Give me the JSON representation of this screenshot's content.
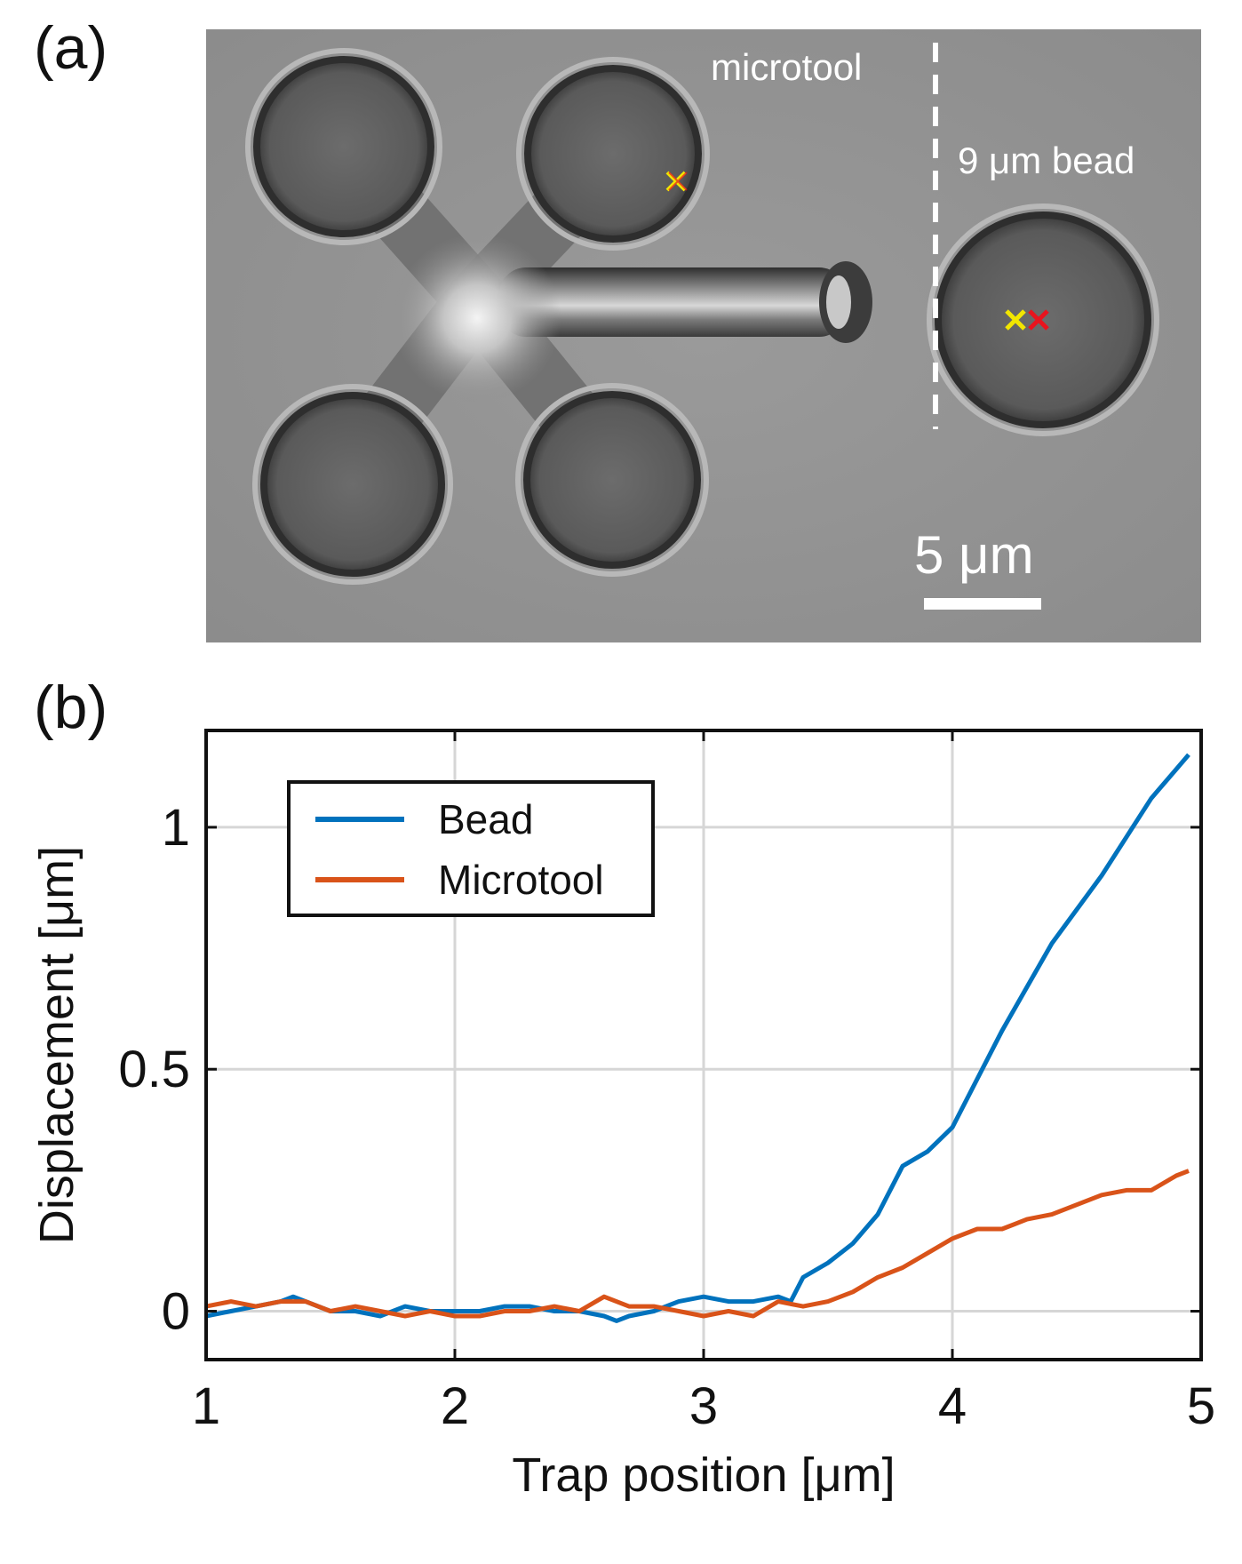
{
  "panel_a": {
    "label": "(a)",
    "annotations": {
      "microtool": "microtool",
      "bead": "9 μm bead",
      "scale_bar": "5 μm"
    },
    "marker_colors": {
      "yellow": "#f2e600",
      "red": "#e8141e"
    }
  },
  "panel_b": {
    "label": "(b)"
  },
  "chart_data": {
    "type": "line",
    "title": "",
    "xlabel": "Trap position [μm]",
    "ylabel": "Displacement [μm]",
    "xlim": [
      1,
      5
    ],
    "ylim": [
      -0.1,
      1.2
    ],
    "xticks": [
      1,
      2,
      3,
      4,
      5
    ],
    "yticks": [
      0,
      0.5,
      1
    ],
    "ytick_labels": [
      "0",
      "0.5",
      "1"
    ],
    "grid": true,
    "legend_position": "top-left",
    "series": [
      {
        "name": "Bead",
        "color": "#0072bd",
        "x": [
          1.0,
          1.1,
          1.2,
          1.3,
          1.35,
          1.4,
          1.5,
          1.6,
          1.7,
          1.8,
          1.9,
          2.0,
          2.1,
          2.2,
          2.3,
          2.4,
          2.5,
          2.6,
          2.65,
          2.7,
          2.8,
          2.9,
          3.0,
          3.1,
          3.2,
          3.3,
          3.35,
          3.4,
          3.5,
          3.6,
          3.7,
          3.8,
          3.9,
          4.0,
          4.1,
          4.2,
          4.3,
          4.4,
          4.5,
          4.6,
          4.7,
          4.8,
          4.9,
          4.95
        ],
        "values": [
          -0.01,
          0.0,
          0.01,
          0.02,
          0.03,
          0.02,
          0.0,
          0.0,
          -0.01,
          0.01,
          0.0,
          0.0,
          0.0,
          0.01,
          0.01,
          0.0,
          0.0,
          -0.01,
          -0.02,
          -0.01,
          0.0,
          0.02,
          0.03,
          0.02,
          0.02,
          0.03,
          0.02,
          0.07,
          0.1,
          0.14,
          0.2,
          0.3,
          0.33,
          0.38,
          0.48,
          0.58,
          0.67,
          0.76,
          0.83,
          0.9,
          0.98,
          1.06,
          1.12,
          1.15
        ]
      },
      {
        "name": "Microtool",
        "color": "#d95319",
        "x": [
          1.0,
          1.1,
          1.2,
          1.3,
          1.4,
          1.5,
          1.6,
          1.7,
          1.8,
          1.9,
          2.0,
          2.1,
          2.2,
          2.3,
          2.4,
          2.5,
          2.6,
          2.7,
          2.8,
          2.9,
          3.0,
          3.1,
          3.2,
          3.3,
          3.4,
          3.5,
          3.6,
          3.7,
          3.8,
          3.9,
          4.0,
          4.1,
          4.2,
          4.3,
          4.4,
          4.5,
          4.6,
          4.7,
          4.8,
          4.9,
          4.95
        ],
        "values": [
          0.01,
          0.02,
          0.01,
          0.02,
          0.02,
          0.0,
          0.01,
          0.0,
          -0.01,
          0.0,
          -0.01,
          -0.01,
          0.0,
          0.0,
          0.01,
          0.0,
          0.03,
          0.01,
          0.01,
          0.0,
          -0.01,
          0.0,
          -0.01,
          0.02,
          0.01,
          0.02,
          0.04,
          0.07,
          0.09,
          0.12,
          0.15,
          0.17,
          0.17,
          0.19,
          0.2,
          0.22,
          0.24,
          0.25,
          0.25,
          0.28,
          0.29
        ]
      }
    ]
  }
}
